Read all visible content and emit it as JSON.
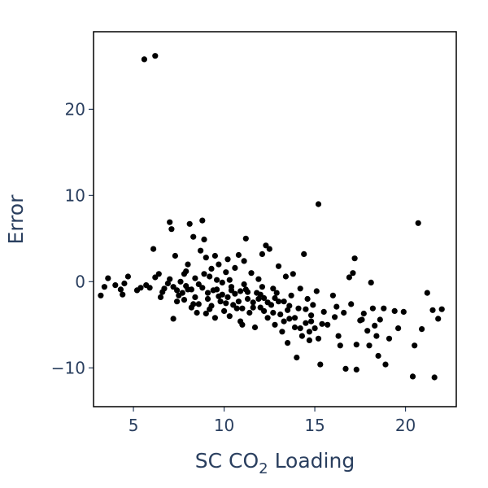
{
  "chart_data": {
    "type": "scatter",
    "xlabel": "SC CO",
    "xlabel_sub": "2",
    "xlabel_suffix": " Loading",
    "ylabel": "Error",
    "xlim": [
      2.8,
      22.8
    ],
    "ylim": [
      -14.5,
      29.0
    ],
    "xticks": [
      5,
      10,
      15,
      20
    ],
    "yticks": [
      -10,
      0,
      10,
      20
    ],
    "xtick_labels": [
      "5",
      "10",
      "15",
      "20"
    ],
    "ytick_labels": [
      "−10",
      "0",
      "10",
      "20"
    ],
    "grid": false,
    "marker_color": "#000000",
    "points": [
      [
        5.6,
        25.8
      ],
      [
        6.2,
        26.2
      ],
      [
        15.2,
        9.0
      ],
      [
        20.7,
        6.8
      ],
      [
        3.2,
        -1.6
      ],
      [
        3.4,
        -0.6
      ],
      [
        3.6,
        0.4
      ],
      [
        4.0,
        -0.4
      ],
      [
        4.3,
        -0.9
      ],
      [
        4.4,
        -1.5
      ],
      [
        4.5,
        -0.2
      ],
      [
        4.7,
        0.6
      ],
      [
        5.2,
        -1.0
      ],
      [
        5.4,
        -0.7
      ],
      [
        5.7,
        -0.4
      ],
      [
        5.9,
        -0.7
      ],
      [
        6.1,
        3.8
      ],
      [
        6.2,
        0.5
      ],
      [
        6.4,
        0.9
      ],
      [
        6.5,
        -1.8
      ],
      [
        6.7,
        -0.8
      ],
      [
        6.9,
        -0.2
      ],
      [
        7.0,
        0.3
      ],
      [
        7.0,
        6.9
      ],
      [
        7.1,
        6.1
      ],
      [
        7.3,
        3.0
      ],
      [
        7.2,
        -4.3
      ],
      [
        7.4,
        -2.3
      ],
      [
        7.4,
        -1.0
      ],
      [
        7.6,
        0.0
      ],
      [
        7.7,
        -1.3
      ],
      [
        7.8,
        -2.1
      ],
      [
        7.9,
        -0.5
      ],
      [
        7.9,
        1.2
      ],
      [
        8.0,
        2.0
      ],
      [
        8.1,
        6.7
      ],
      [
        8.2,
        -3.0
      ],
      [
        8.2,
        -0.9
      ],
      [
        8.3,
        5.2
      ],
      [
        8.4,
        -1.8
      ],
      [
        8.5,
        -3.6
      ],
      [
        8.6,
        -2.6
      ],
      [
        8.7,
        3.6
      ],
      [
        8.8,
        -0.7
      ],
      [
        8.8,
        7.1
      ],
      [
        8.9,
        4.9
      ],
      [
        9.0,
        -3.7
      ],
      [
        9.1,
        -1.3
      ],
      [
        9.2,
        0.6
      ],
      [
        9.3,
        1.5
      ],
      [
        9.3,
        -2.8
      ],
      [
        9.5,
        -4.2
      ],
      [
        9.5,
        3.0
      ],
      [
        9.6,
        -0.9
      ],
      [
        9.7,
        2.0
      ],
      [
        9.8,
        -2.3
      ],
      [
        9.9,
        -0.1
      ],
      [
        10.0,
        -3.4
      ],
      [
        10.1,
        1.1
      ],
      [
        10.2,
        -1.8
      ],
      [
        10.2,
        2.6
      ],
      [
        10.3,
        -4.0
      ],
      [
        10.4,
        -0.6
      ],
      [
        10.5,
        -2.7
      ],
      [
        10.6,
        1.6
      ],
      [
        10.7,
        -3.1
      ],
      [
        10.8,
        3.1
      ],
      [
        10.9,
        -1.1
      ],
      [
        11.0,
        -5.0
      ],
      [
        11.1,
        -0.3
      ],
      [
        11.1,
        2.4
      ],
      [
        11.2,
        5.0
      ],
      [
        11.3,
        -2.0
      ],
      [
        11.4,
        -3.6
      ],
      [
        11.5,
        1.0
      ],
      [
        11.6,
        -2.4
      ],
      [
        11.7,
        -5.3
      ],
      [
        11.8,
        -1.3
      ],
      [
        11.9,
        0.3
      ],
      [
        12.0,
        -3.0
      ],
      [
        12.1,
        3.2
      ],
      [
        12.2,
        -1.9
      ],
      [
        12.3,
        4.2
      ],
      [
        12.4,
        -4.2
      ],
      [
        12.5,
        3.8
      ],
      [
        12.6,
        -2.7
      ],
      [
        12.7,
        -0.8
      ],
      [
        12.8,
        -5.0
      ],
      [
        12.9,
        -1.3
      ],
      [
        13.0,
        1.8
      ],
      [
        13.1,
        -3.8
      ],
      [
        13.2,
        -5.8
      ],
      [
        13.3,
        -2.3
      ],
      [
        13.4,
        0.6
      ],
      [
        13.5,
        -7.1
      ],
      [
        13.6,
        -4.3
      ],
      [
        13.7,
        -1.6
      ],
      [
        13.8,
        0.9
      ],
      [
        13.9,
        -5.3
      ],
      [
        14.0,
        -8.8
      ],
      [
        14.1,
        -3.1
      ],
      [
        14.2,
        -0.8
      ],
      [
        14.3,
        -6.3
      ],
      [
        14.4,
        3.2
      ],
      [
        14.5,
        -4.8
      ],
      [
        14.6,
        -2.0
      ],
      [
        14.7,
        -6.8
      ],
      [
        14.8,
        -3.9
      ],
      [
        14.9,
        -2.7
      ],
      [
        15.0,
        -5.4
      ],
      [
        15.1,
        -1.1
      ],
      [
        15.2,
        -6.6
      ],
      [
        15.3,
        -9.6
      ],
      [
        15.5,
        -3.5
      ],
      [
        15.7,
        -5.0
      ],
      [
        16.0,
        -1.6
      ],
      [
        16.1,
        -4.1
      ],
      [
        16.3,
        -6.3
      ],
      [
        16.4,
        -7.4
      ],
      [
        16.6,
        -3.6
      ],
      [
        16.7,
        -10.1
      ],
      [
        16.9,
        0.5
      ],
      [
        17.0,
        -2.6
      ],
      [
        17.1,
        1.0
      ],
      [
        17.2,
        2.7
      ],
      [
        17.3,
        -7.3
      ],
      [
        17.3,
        -10.2
      ],
      [
        17.5,
        -4.5
      ],
      [
        17.7,
        -3.7
      ],
      [
        17.9,
        -5.7
      ],
      [
        18.0,
        -7.4
      ],
      [
        18.1,
        -0.1
      ],
      [
        18.2,
        -3.1
      ],
      [
        18.3,
        -5.1
      ],
      [
        18.5,
        -8.6
      ],
      [
        18.6,
        -4.4
      ],
      [
        18.8,
        -3.1
      ],
      [
        18.9,
        -9.6
      ],
      [
        19.1,
        -6.6
      ],
      [
        19.4,
        -3.4
      ],
      [
        19.6,
        -5.4
      ],
      [
        19.9,
        -3.5
      ],
      [
        20.4,
        -11.0
      ],
      [
        20.5,
        -7.4
      ],
      [
        20.9,
        -5.5
      ],
      [
        21.2,
        -1.3
      ],
      [
        21.5,
        -3.3
      ],
      [
        21.6,
        -11.1
      ],
      [
        21.8,
        -4.3
      ],
      [
        22.0,
        -3.2
      ],
      [
        7.5,
        -1.6
      ],
      [
        7.8,
        0.9
      ],
      [
        8.0,
        -0.9
      ],
      [
        8.3,
        -2.6
      ],
      [
        8.6,
        -0.3
      ],
      [
        8.9,
        0.9
      ],
      [
        9.1,
        -2.0
      ],
      [
        9.4,
        -1.0
      ],
      [
        9.6,
        0.2
      ],
      [
        9.9,
        -1.5
      ],
      [
        10.1,
        -2.5
      ],
      [
        10.3,
        0.2
      ],
      [
        10.6,
        -1.4
      ],
      [
        10.8,
        -2.3
      ],
      [
        11.0,
        -3.1
      ],
      [
        11.3,
        -1.2
      ],
      [
        11.6,
        -3.0
      ],
      [
        11.9,
        -2.0
      ],
      [
        12.1,
        -0.6
      ],
      [
        12.4,
        -2.4
      ],
      [
        12.7,
        -3.6
      ],
      [
        13.0,
        -2.3
      ],
      [
        13.3,
        -4.6
      ],
      [
        13.6,
        -2.8
      ],
      [
        13.9,
        -4.2
      ],
      [
        14.2,
        -5.4
      ],
      [
        14.5,
        -3.2
      ],
      [
        14.8,
        -4.6
      ],
      [
        9.0,
        2.8
      ],
      [
        9.7,
        -1.7
      ],
      [
        10.4,
        -1.0
      ],
      [
        11.2,
        -0.9
      ],
      [
        12.0,
        -1.5
      ],
      [
        12.8,
        -1.9
      ],
      [
        13.5,
        -3.3
      ],
      [
        14.7,
        -5.8
      ],
      [
        15.4,
        -4.9
      ],
      [
        16.2,
        -2.9
      ],
      [
        17.6,
        -4.4
      ],
      [
        18.4,
        -6.3
      ],
      [
        10.9,
        -4.6
      ],
      [
        12.2,
        -3.4
      ],
      [
        8.4,
        0.4
      ],
      [
        9.2,
        -3.2
      ],
      [
        7.2,
        -0.6
      ],
      [
        6.6,
        -1.2
      ]
    ]
  }
}
